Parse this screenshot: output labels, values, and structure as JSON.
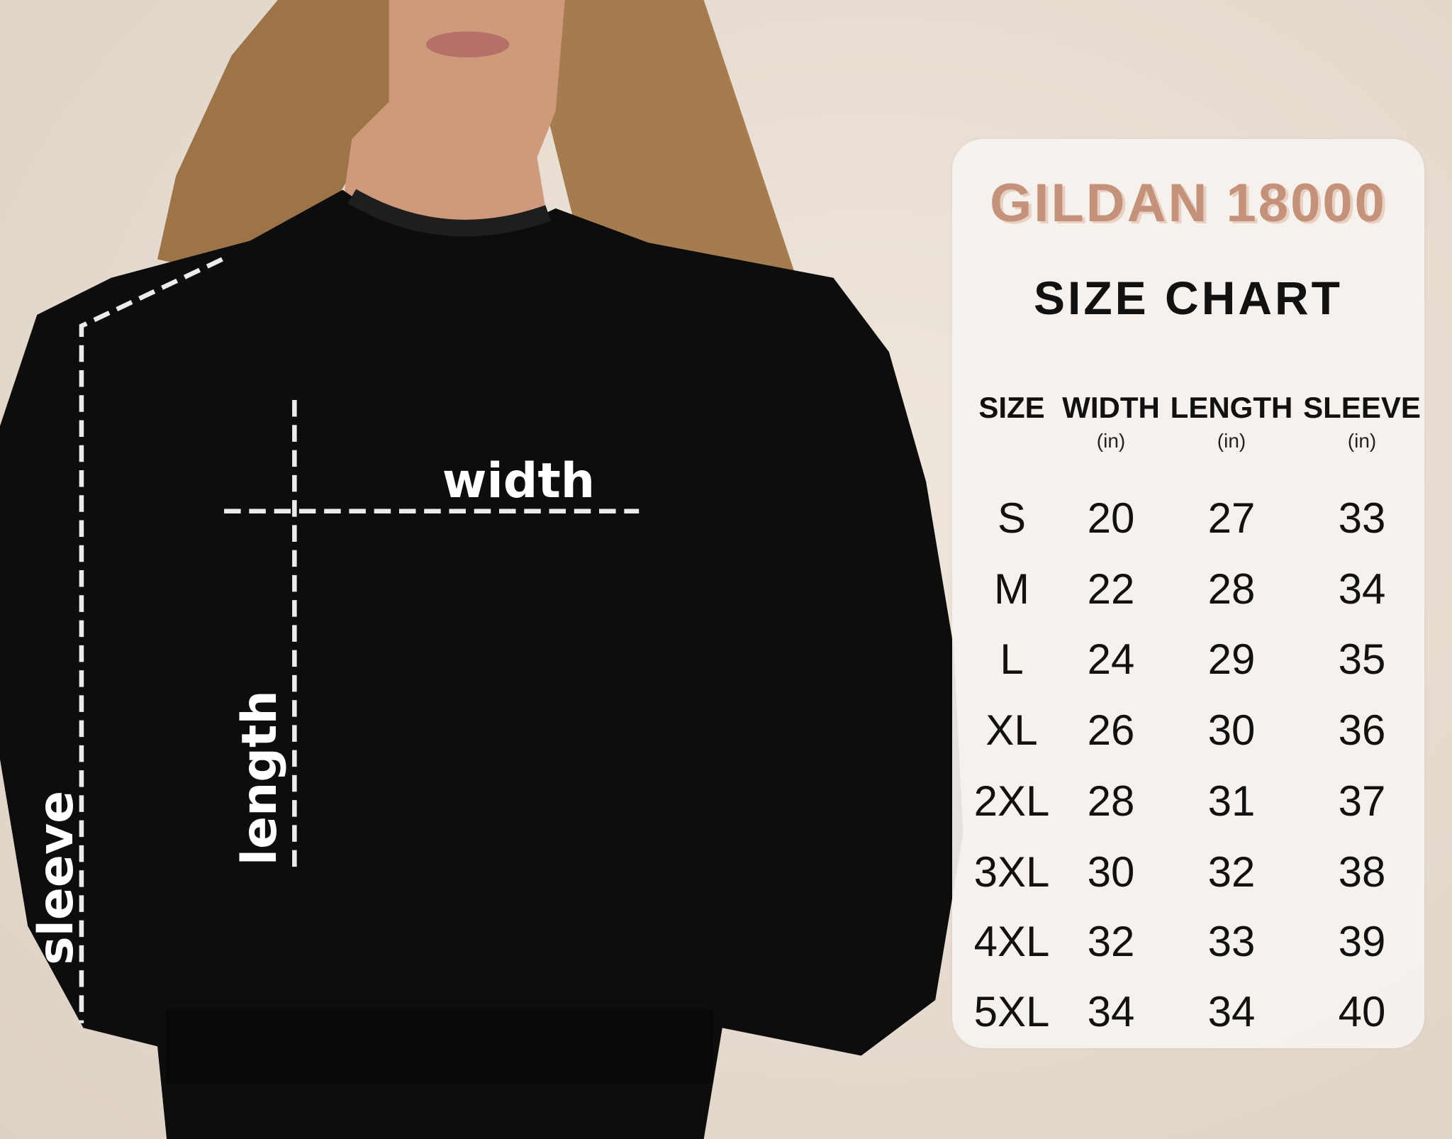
{
  "diagram_labels": {
    "width": "width",
    "length": "length",
    "sleeve": "sleeve"
  },
  "size_chart": {
    "brand": "GILDAN 18000",
    "title": "SIZE CHART",
    "columns": [
      {
        "label": "SIZE",
        "unit": ""
      },
      {
        "label": "WIDTH",
        "unit": "(in)"
      },
      {
        "label": "LENGTH",
        "unit": "(in)"
      },
      {
        "label": "SLEEVE",
        "unit": "(in)"
      }
    ],
    "rows": [
      [
        "S",
        "20",
        "27",
        "33"
      ],
      [
        "M",
        "22",
        "28",
        "34"
      ],
      [
        "L",
        "24",
        "29",
        "35"
      ],
      [
        "XL",
        "26",
        "30",
        "36"
      ],
      [
        "2XL",
        "28",
        "31",
        "37"
      ],
      [
        "3XL",
        "30",
        "32",
        "38"
      ],
      [
        "4XL",
        "32",
        "33",
        "39"
      ],
      [
        "5XL",
        "34",
        "34",
        "40"
      ]
    ]
  },
  "colors": {
    "brand": "#c4927b",
    "sweater": "#0d0d0d",
    "background": "#e9ded3"
  }
}
